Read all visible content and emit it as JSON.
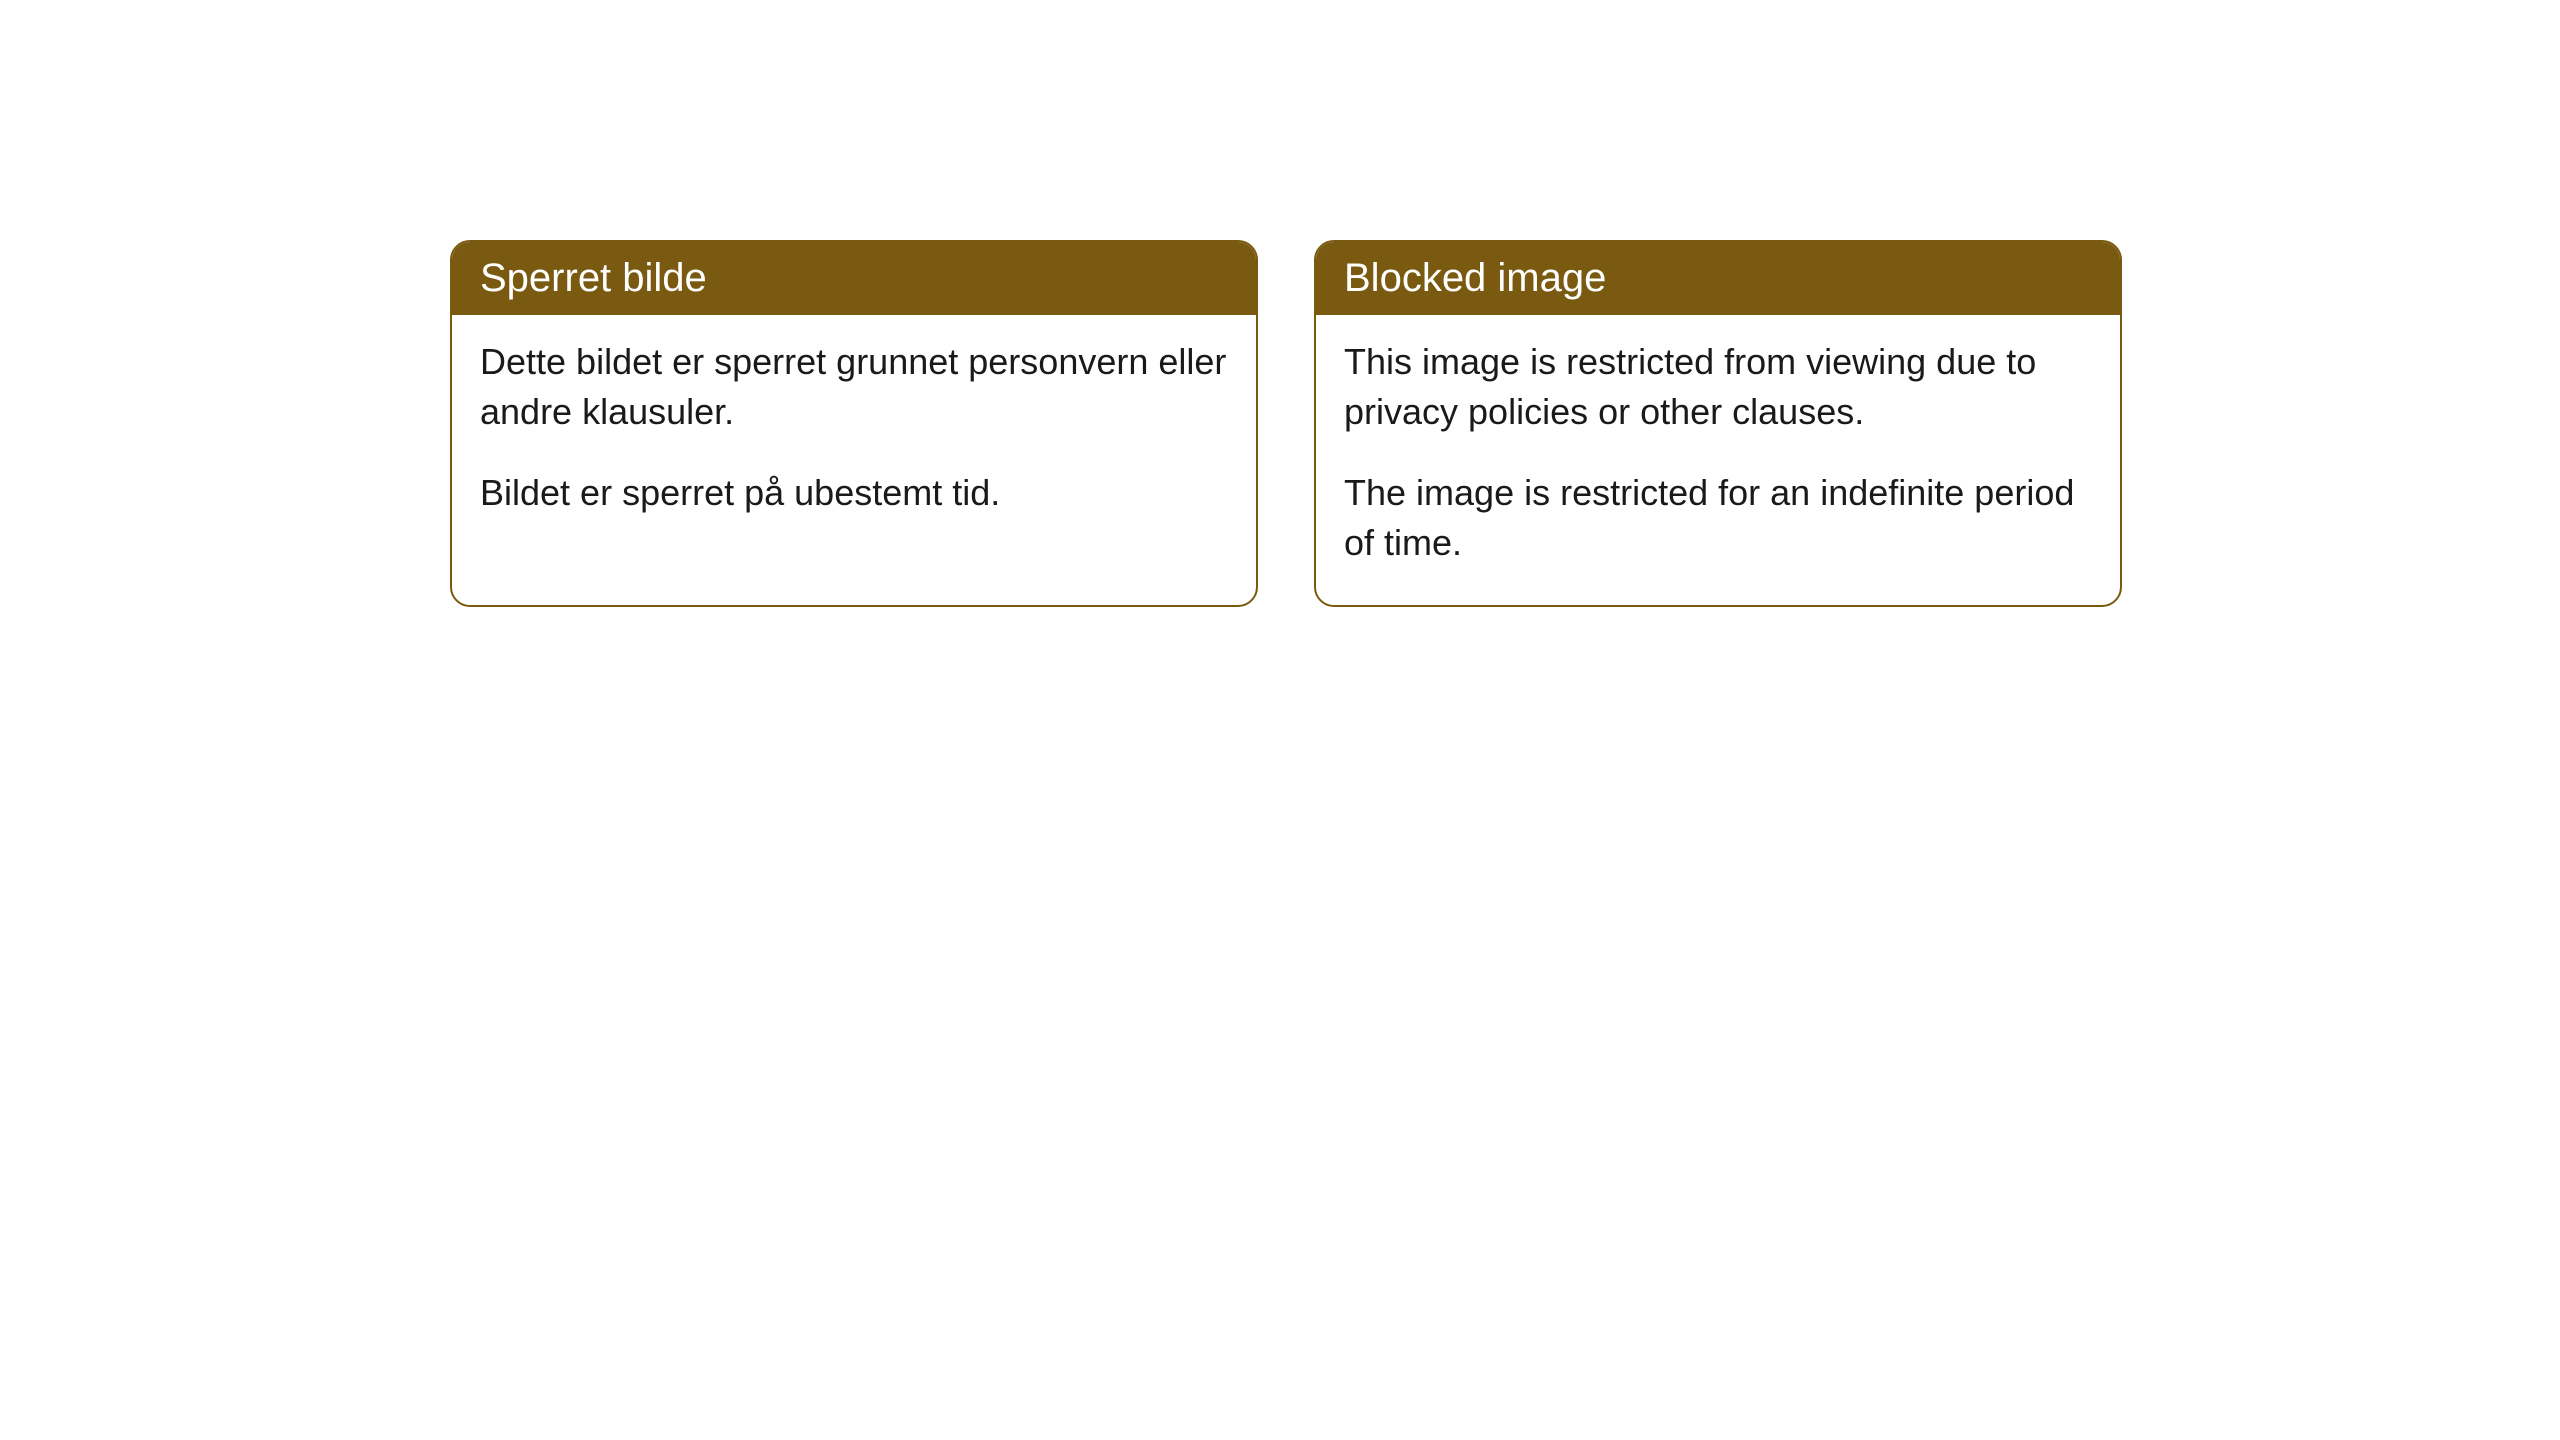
{
  "cards": [
    {
      "title": "Sperret bilde",
      "paragraph1": "Dette bildet er sperret grunnet personvern eller andre klausuler.",
      "paragraph2": "Bildet er sperret på ubestemt tid."
    },
    {
      "title": "Blocked image",
      "paragraph1": "This image is restricted from viewing due to privacy policies or other clauses.",
      "paragraph2": "The image is restricted for an indefinite period of time."
    }
  ],
  "styles": {
    "header_bg_color": "#7a5a10",
    "header_text_color": "#ffffff",
    "border_color": "#7a5a10",
    "body_text_color": "#1a1a1a",
    "background_color": "#ffffff",
    "border_radius": 20,
    "title_fontsize": 40,
    "body_fontsize": 36
  }
}
